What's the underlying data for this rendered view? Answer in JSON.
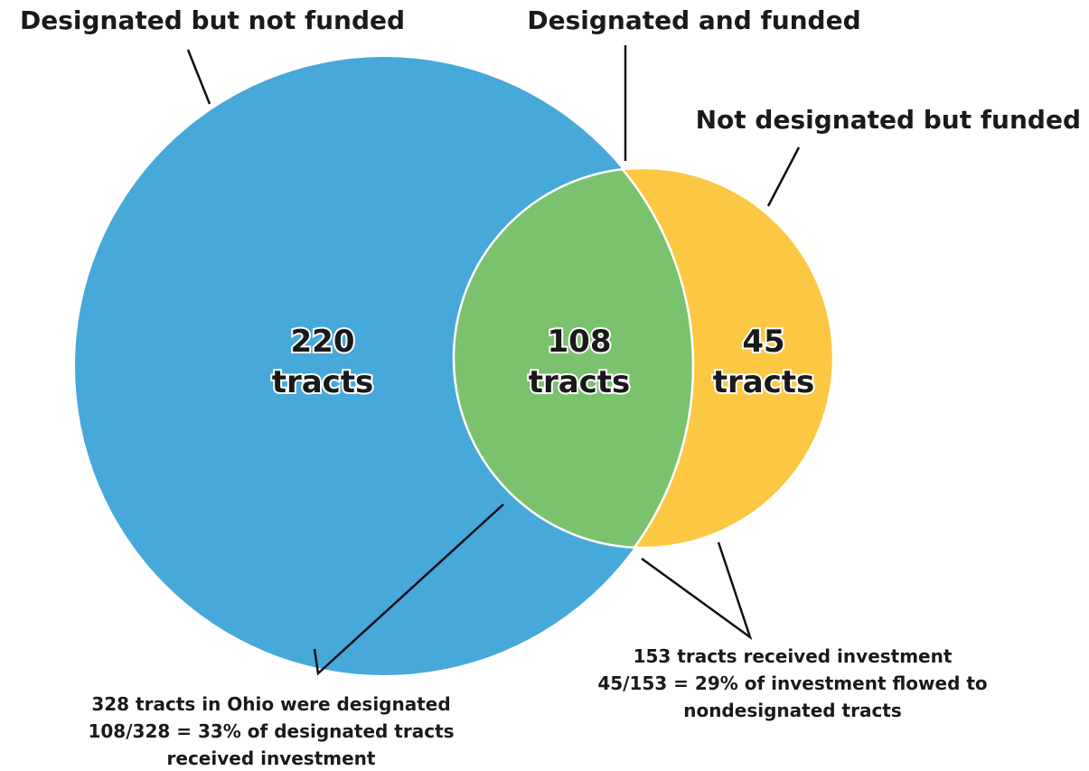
{
  "title_labels": [
    "Designated but not funded",
    "Designated and funded",
    "Not designated but funded"
  ],
  "regions": [
    {
      "count": "220",
      "unit": "tracts"
    },
    {
      "count": "108",
      "unit": "tracts"
    },
    {
      "count": "45",
      "unit": "tracts"
    }
  ],
  "annotations": [
    {
      "lines": [
        "328 tracts in Ohio were designated",
        "108/328 = 33% of designated tracts",
        "received investment"
      ]
    },
    {
      "lines": [
        "153 tracts received investment",
        "45/153 = 29% of investment flowed to",
        "nondesignated tracts"
      ]
    }
  ]
}
